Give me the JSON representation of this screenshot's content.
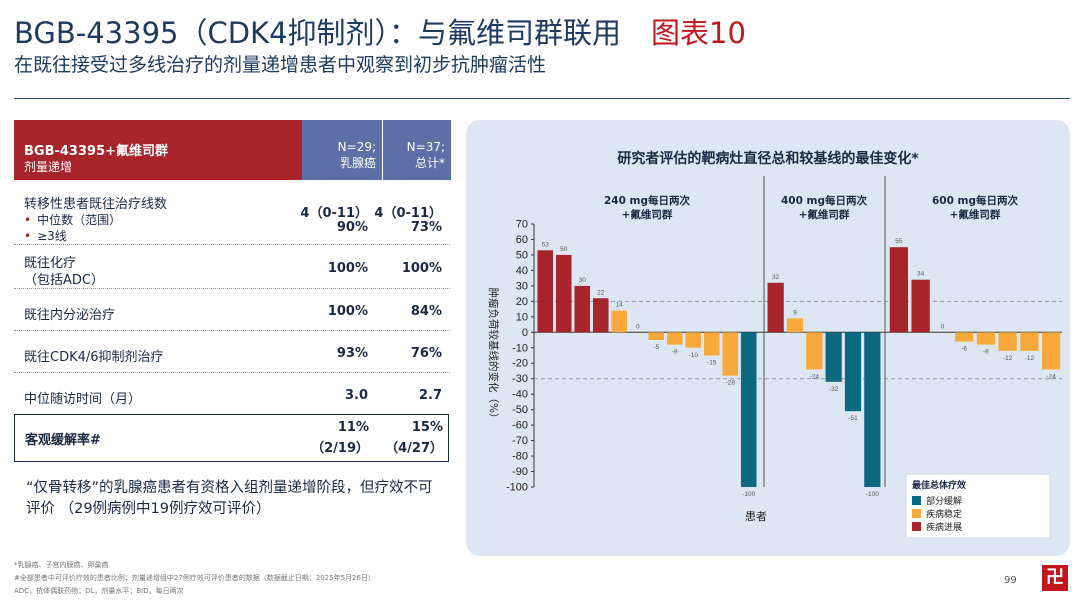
{
  "header": {
    "title": "BGB-43395（CDK4抑制剂）：与氟维司群联用",
    "tag": "图表10",
    "subtitle": "在既往接受过多线治疗的剂量递增患者中观察到初步抗肿瘤活性"
  },
  "table": {
    "head": {
      "title": "BGB-43395+氟维司群",
      "subtitle": "剂量递增",
      "col1": [
        "N=29;",
        "乳腺癌"
      ],
      "col2": [
        "N=37;",
        "总计*"
      ]
    },
    "rows": [
      {
        "label": "转移性患者既往治疗线数",
        "sub": [
          "中位数（范围）",
          "≥3线"
        ],
        "v1": [
          "4（0-11）",
          "90%"
        ],
        "v2": [
          "4（0-11）",
          "73%"
        ]
      },
      {
        "label": "既往化疗",
        "label2": "（包括ADC）",
        "v1": [
          "100%"
        ],
        "v2": [
          "100%"
        ]
      },
      {
        "label": "既往内分泌治疗",
        "v1": [
          "100%"
        ],
        "v2": [
          "84%"
        ]
      },
      {
        "label": "既往CDK4/6抑制剂治疗",
        "v1": [
          "93%"
        ],
        "v2": [
          "76%"
        ]
      },
      {
        "label": "中位随访时间（月）",
        "v1": [
          "3.0"
        ],
        "v2": [
          "2.7"
        ]
      },
      {
        "label": "客观缓解率#",
        "v1": [
          "11%",
          "（2/19）"
        ],
        "v2": [
          "15%",
          "（4/27）"
        ]
      }
    ]
  },
  "note": "“仅骨转移”的乳腺癌患者有资格入组剂量递增阶段，但疗效不可评价 （29例病例中19例疗效可评价）",
  "chart_data": {
    "type": "bar",
    "title": "研究者评估的靶病灶直径总和较基线的最佳变化*",
    "ylabel": "肿瘤负荷较基线的变化（%）",
    "xlabel": "患者",
    "ylim": [
      -100,
      70
    ],
    "yticks": [
      70,
      60,
      50,
      40,
      30,
      20,
      10,
      0,
      -10,
      -20,
      -30,
      -40,
      -50,
      -60,
      -70,
      -80,
      -90,
      -100
    ],
    "reference_lines": [
      20,
      -30
    ],
    "groups": [
      {
        "label": [
          "240 mg每日两次",
          "+氟维司群"
        ],
        "values": [
          53,
          50,
          30,
          22,
          14,
          0,
          -5,
          -8,
          -10,
          -15,
          -28,
          -100
        ],
        "response": [
          "PD",
          "PD",
          "PD",
          "PD",
          "SD",
          "SD",
          "SD",
          "SD",
          "SD",
          "SD",
          "SD",
          "PR"
        ]
      },
      {
        "label": [
          "400 mg每日两次",
          "+氟维司群"
        ],
        "values": [
          32,
          9,
          -24,
          -32,
          -51,
          -100
        ],
        "response": [
          "PD",
          "SD",
          "SD",
          "PR",
          "PR",
          "PR"
        ]
      },
      {
        "label": [
          "600 mg每日两次",
          "+氟维司群"
        ],
        "values": [
          55,
          34,
          0,
          -6,
          -8,
          -12,
          -12,
          -24
        ],
        "response": [
          "PD",
          "PD",
          "SD",
          "SD",
          "SD",
          "SD",
          "SD",
          "SD"
        ]
      }
    ],
    "legend": {
      "title": "最佳总体疗效",
      "items": [
        {
          "key": "PR",
          "label": "部分缓解",
          "color": "#0b6a80"
        },
        {
          "key": "SD",
          "label": "疾病稳定",
          "color": "#f7a93b"
        },
        {
          "key": "PD",
          "label": "疾病进展",
          "color": "#a8242b"
        }
      ]
    }
  },
  "footer": {
    "line1": "*乳腺癌、子宫内膜癌、卵巢癌",
    "line2": "#全部患者中可评价疗效的患者比例；剂量递增组中27例疗效可评价患者的数据（数据截止日期：2025年5月26日）",
    "line3": "ADC，抗体偶联药物；DL，剂量水平；BID，每日两次",
    "page": "99",
    "logo": "卍"
  }
}
